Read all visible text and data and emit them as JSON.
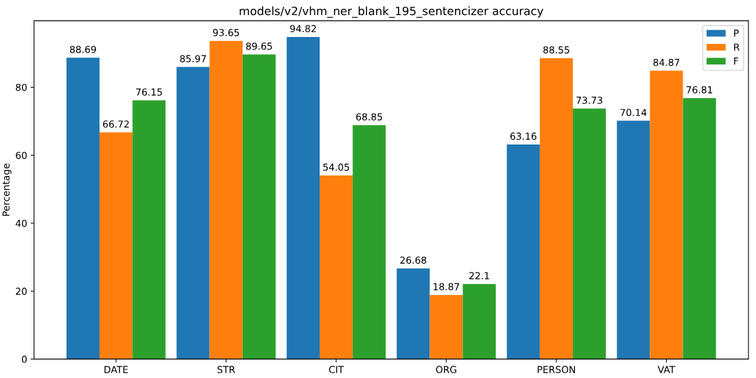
{
  "chart_data": {
    "type": "bar",
    "title": "models/v2/vhm_ner_blank_195_sentencizer accuracy",
    "ylabel": "Percentage",
    "categories": [
      "DATE",
      "STR",
      "CIT",
      "ORG",
      "PERSON",
      "VAT"
    ],
    "series": [
      {
        "name": "P",
        "color": "#1f77b4",
        "values": [
          88.69,
          85.97,
          94.82,
          26.68,
          63.16,
          70.14
        ]
      },
      {
        "name": "R",
        "color": "#ff7f0e",
        "values": [
          66.72,
          93.65,
          54.05,
          18.87,
          88.55,
          84.87
        ]
      },
      {
        "name": "F",
        "color": "#2ca02c",
        "values": [
          76.15,
          89.65,
          68.85,
          22.1,
          73.73,
          76.81
        ]
      }
    ],
    "ylim": [
      0,
      99.56
    ],
    "yticks": [
      0,
      20,
      40,
      60,
      80
    ],
    "data_labels": true,
    "grid": false,
    "legend": "top right"
  }
}
